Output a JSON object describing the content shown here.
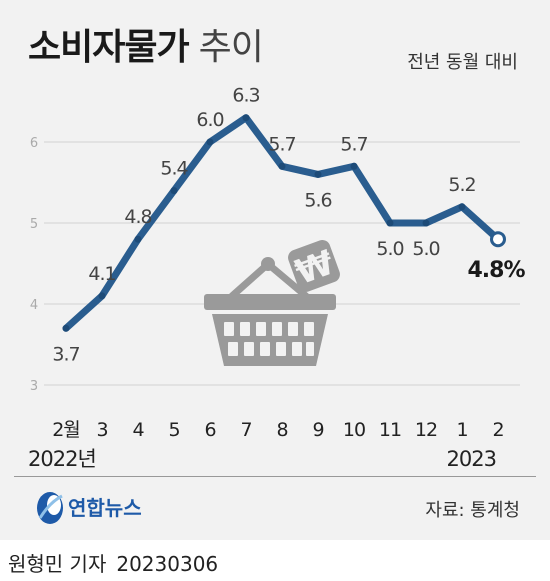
{
  "header": {
    "title_bold": "소비자물가",
    "title_light": "추이",
    "subtitle": "전년 동월 대비"
  },
  "chart_data": {
    "type": "line",
    "title": "소비자물가 추이",
    "subtitle": "전년 동월 대비",
    "ylim": [
      3,
      6.6
    ],
    "yticks": [
      "3",
      "4",
      "5",
      "6"
    ],
    "grid": true,
    "categories": [
      "2월",
      "3",
      "4",
      "5",
      "6",
      "7",
      "8",
      "9",
      "10",
      "11",
      "12",
      "1",
      "2"
    ],
    "year_labels": {
      "start": "2022년",
      "end": "2023"
    },
    "series": [
      {
        "values": [
          3.7,
          4.1,
          4.8,
          5.4,
          6.0,
          6.3,
          5.7,
          5.6,
          5.7,
          5.0,
          5.0,
          5.2,
          4.8
        ],
        "labels": [
          "3.7",
          "4.1",
          "4.8",
          "5.4",
          "6.0",
          "6.3",
          "5.7",
          "5.6",
          "5.7",
          "5.0",
          "5.0",
          "5.2",
          "4.8%"
        ],
        "color": "#2a5d8f"
      }
    ]
  },
  "colors": {
    "line": "#2a5d8f",
    "grid": "#cfcfcf",
    "basket": "#9a9a9a",
    "card": "#f2f2f2"
  },
  "icons": [
    "shopping-basket-icon",
    "won-coin-icon",
    "yonhap-logo-icon"
  ],
  "footer": {
    "logo_text": "연합뉴스",
    "source": "자료: 통계청"
  },
  "byline": {
    "reporter": "원형민 기자",
    "date": "20230306"
  }
}
